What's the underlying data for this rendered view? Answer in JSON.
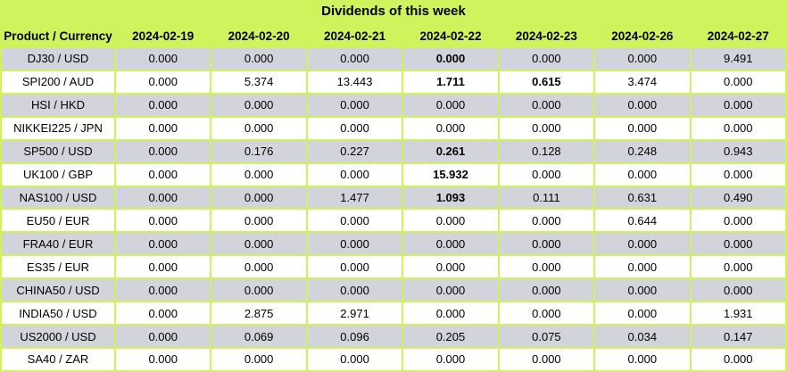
{
  "colors": {
    "header_bg": "#cef35c",
    "stripe_row_bg": "#d3d3dc",
    "plain_row_bg": "#ffffff",
    "text": "#000000"
  },
  "chart_data": {
    "type": "table",
    "title": "Dividends of this week",
    "corner_header": "Product / Currency",
    "date_columns": [
      "2024-02-19",
      "2024-02-20",
      "2024-02-21",
      "2024-02-22",
      "2024-02-23",
      "2024-02-26",
      "2024-02-27"
    ],
    "rows": [
      {
        "product": "DJ30 / USD",
        "values": [
          "0.000",
          "0.000",
          "0.000",
          "0.000",
          "0.000",
          "0.000",
          "9.491"
        ],
        "bold": [
          3
        ]
      },
      {
        "product": "SPI200 / AUD",
        "values": [
          "0.000",
          "5.374",
          "13.443",
          "1.711",
          "0.615",
          "3.474",
          "0.000"
        ],
        "bold": [
          3,
          4
        ]
      },
      {
        "product": "HSI / HKD",
        "values": [
          "0.000",
          "0.000",
          "0.000",
          "0.000",
          "0.000",
          "0.000",
          "0.000"
        ],
        "bold": []
      },
      {
        "product": "NIKKEI225 / JPN",
        "values": [
          "0.000",
          "0.000",
          "0.000",
          "0.000",
          "0.000",
          "0.000",
          "0.000"
        ],
        "bold": []
      },
      {
        "product": "SP500 / USD",
        "values": [
          "0.000",
          "0.176",
          "0.227",
          "0.261",
          "0.128",
          "0.248",
          "0.943"
        ],
        "bold": [
          3
        ]
      },
      {
        "product": "UK100 / GBP",
        "values": [
          "0.000",
          "0.000",
          "0.000",
          "15.932",
          "0.000",
          "0.000",
          "0.000"
        ],
        "bold": [
          3
        ]
      },
      {
        "product": "NAS100 / USD",
        "values": [
          "0.000",
          "0.000",
          "1.477",
          "1.093",
          "0.111",
          "0.631",
          "0.490"
        ],
        "bold": [
          3
        ]
      },
      {
        "product": "EU50 / EUR",
        "values": [
          "0.000",
          "0.000",
          "0.000",
          "0.000",
          "0.000",
          "0.644",
          "0.000"
        ],
        "bold": []
      },
      {
        "product": "FRA40 / EUR",
        "values": [
          "0.000",
          "0.000",
          "0.000",
          "0.000",
          "0.000",
          "0.000",
          "0.000"
        ],
        "bold": []
      },
      {
        "product": "ES35 / EUR",
        "values": [
          "0.000",
          "0.000",
          "0.000",
          "0.000",
          "0.000",
          "0.000",
          "0.000"
        ],
        "bold": []
      },
      {
        "product": "CHINA50 / USD",
        "values": [
          "0.000",
          "0.000",
          "0.000",
          "0.000",
          "0.000",
          "0.000",
          "0.000"
        ],
        "bold": []
      },
      {
        "product": "INDIA50 / USD",
        "values": [
          "0.000",
          "2.875",
          "2.971",
          "0.000",
          "0.000",
          "0.000",
          "1.931"
        ],
        "bold": []
      },
      {
        "product": "US2000 / USD",
        "values": [
          "0.000",
          "0.069",
          "0.096",
          "0.205",
          "0.075",
          "0.034",
          "0.147"
        ],
        "bold": []
      },
      {
        "product": "SA40 / ZAR",
        "values": [
          "0.000",
          "0.000",
          "0.000",
          "0.000",
          "0.000",
          "0.000",
          "0.000"
        ],
        "bold": []
      }
    ]
  }
}
